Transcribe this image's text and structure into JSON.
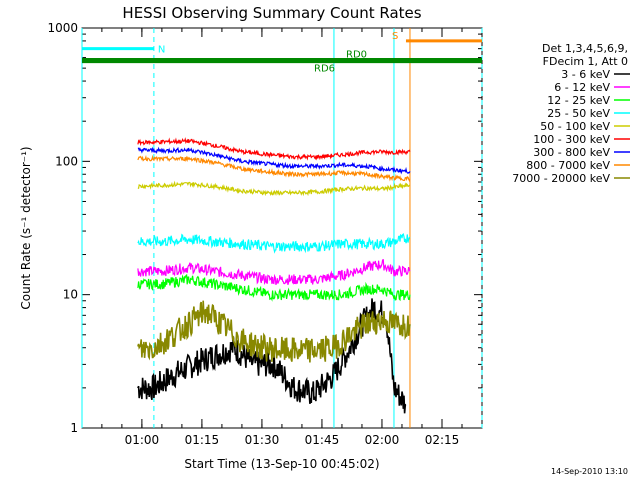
{
  "chart_data": {
    "type": "line",
    "title": "HESSI Observing Summary Count Rates",
    "xlabel": "Start Time (13-Sep-10 00:45:02)",
    "ylabel": "Count Rate (s⁻¹ detector⁻¹)",
    "yscale": "log",
    "ylim": [
      1,
      1000
    ],
    "xlim": [
      "00:45:02",
      "02:25:00"
    ],
    "x_ticks": [
      "01:00",
      "01:15",
      "01:30",
      "01:45",
      "02:00",
      "02:15"
    ],
    "y_ticks": [
      "1",
      "10",
      "100",
      "1000"
    ],
    "legend_title": [
      "Det 1,3,4,5,6,9,",
      "FDecim 1, Att 0"
    ],
    "legend_position": "right",
    "footer": "14-Sep-2010 13:10",
    "series": [
      {
        "name": "3 - 6 keV",
        "color": "#000000",
        "points": [
          [
            "00:59:00",
            2.0
          ],
          [
            "01:03:00",
            2.0
          ],
          [
            "01:08:00",
            2.5
          ],
          [
            "01:13:00",
            3.0
          ],
          [
            "01:18:00",
            3.5
          ],
          [
            "01:23:00",
            4.0
          ],
          [
            "01:28:00",
            3.0
          ],
          [
            "01:33:00",
            3.0
          ],
          [
            "01:38:00",
            2.0
          ],
          [
            "01:43:00",
            1.8
          ],
          [
            "01:48:00",
            2.5
          ],
          [
            "01:52:00",
            4.0
          ],
          [
            "01:55:00",
            6.0
          ],
          [
            "01:58:00",
            8.0
          ],
          [
            "02:01:00",
            7.0
          ],
          [
            "02:03:00",
            2.0
          ],
          [
            "02:06:00",
            1.5
          ]
        ]
      },
      {
        "name": "6 - 12 keV",
        "color": "#ff00ff",
        "points": [
          [
            "00:59:00",
            15
          ],
          [
            "01:05:00",
            15
          ],
          [
            "01:12:00",
            16
          ],
          [
            "01:18:00",
            15
          ],
          [
            "01:25:00",
            14
          ],
          [
            "01:32:00",
            13
          ],
          [
            "01:38:00",
            13
          ],
          [
            "01:44:00",
            13
          ],
          [
            "01:50:00",
            14
          ],
          [
            "01:56:00",
            16
          ],
          [
            "02:00:00",
            17
          ],
          [
            "02:03:00",
            15
          ],
          [
            "02:07:00",
            15
          ]
        ]
      },
      {
        "name": "12 - 25 keV",
        "color": "#00ff00",
        "points": [
          [
            "00:59:00",
            12
          ],
          [
            "01:05:00",
            12
          ],
          [
            "01:12:00",
            13
          ],
          [
            "01:18:00",
            12
          ],
          [
            "01:25:00",
            11
          ],
          [
            "01:32:00",
            10
          ],
          [
            "01:38:00",
            10
          ],
          [
            "01:44:00",
            10
          ],
          [
            "01:50:00",
            10
          ],
          [
            "01:56:00",
            11
          ],
          [
            "02:00:00",
            11
          ],
          [
            "02:03:00",
            10
          ],
          [
            "02:07:00",
            10
          ]
        ]
      },
      {
        "name": "25 - 50 keV",
        "color": "#00ffff",
        "points": [
          [
            "00:59:00",
            25
          ],
          [
            "01:05:00",
            25
          ],
          [
            "01:12:00",
            26
          ],
          [
            "01:18:00",
            25
          ],
          [
            "01:25:00",
            24
          ],
          [
            "01:32:00",
            23
          ],
          [
            "01:38:00",
            23
          ],
          [
            "01:44:00",
            23
          ],
          [
            "01:50:00",
            24
          ],
          [
            "01:56:00",
            24
          ],
          [
            "02:00:00",
            24
          ],
          [
            "02:03:00",
            25
          ],
          [
            "02:07:00",
            27
          ]
        ]
      },
      {
        "name": "50 - 100 keV",
        "color": "#cccc00",
        "points": [
          [
            "00:59:00",
            65
          ],
          [
            "01:05:00",
            66
          ],
          [
            "01:12:00",
            68
          ],
          [
            "01:18:00",
            65
          ],
          [
            "01:25:00",
            60
          ],
          [
            "01:32:00",
            58
          ],
          [
            "01:38:00",
            58
          ],
          [
            "01:44:00",
            59
          ],
          [
            "01:50:00",
            62
          ],
          [
            "01:56:00",
            63
          ],
          [
            "02:00:00",
            62
          ],
          [
            "02:03:00",
            64
          ],
          [
            "02:07:00",
            66
          ]
        ]
      },
      {
        "name": "100 - 300 keV",
        "color": "#ff0000",
        "points": [
          [
            "00:59:00",
            138
          ],
          [
            "01:05:00",
            140
          ],
          [
            "01:12:00",
            142
          ],
          [
            "01:18:00",
            132
          ],
          [
            "01:25:00",
            118
          ],
          [
            "01:32:00",
            112
          ],
          [
            "01:38:00",
            108
          ],
          [
            "01:44:00",
            108
          ],
          [
            "01:50:00",
            112
          ],
          [
            "01:56:00",
            117
          ],
          [
            "02:00:00",
            118
          ],
          [
            "02:03:00",
            117
          ],
          [
            "02:07:00",
            118
          ]
        ]
      },
      {
        "name": "300 - 800 keV",
        "color": "#0000ff",
        "points": [
          [
            "00:59:00",
            122
          ],
          [
            "01:05:00",
            120
          ],
          [
            "01:12:00",
            122
          ],
          [
            "01:18:00",
            112
          ],
          [
            "01:25:00",
            100
          ],
          [
            "01:32:00",
            95
          ],
          [
            "01:38:00",
            92
          ],
          [
            "01:44:00",
            92
          ],
          [
            "01:50:00",
            94
          ],
          [
            "01:56:00",
            92
          ],
          [
            "02:00:00",
            88
          ],
          [
            "02:03:00",
            86
          ],
          [
            "02:07:00",
            84
          ]
        ]
      },
      {
        "name": "800 - 7000 keV",
        "color": "#ff8800",
        "points": [
          [
            "00:59:00",
            105
          ],
          [
            "01:05:00",
            104
          ],
          [
            "01:12:00",
            105
          ],
          [
            "01:18:00",
            98
          ],
          [
            "01:25:00",
            88
          ],
          [
            "01:32:00",
            83
          ],
          [
            "01:38:00",
            80
          ],
          [
            "01:44:00",
            80
          ],
          [
            "01:50:00",
            82
          ],
          [
            "01:56:00",
            80
          ],
          [
            "02:00:00",
            77
          ],
          [
            "02:03:00",
            75
          ],
          [
            "02:07:00",
            74
          ]
        ]
      },
      {
        "name": "7000 - 20000 keV",
        "color": "#888800",
        "points": [
          [
            "00:59:00",
            3.8
          ],
          [
            "01:03:00",
            4.0
          ],
          [
            "01:08:00",
            5.0
          ],
          [
            "01:13:00",
            6.5
          ],
          [
            "01:16:00",
            7.5
          ],
          [
            "01:20:00",
            6.0
          ],
          [
            "01:25:00",
            4.5
          ],
          [
            "01:30:00",
            4.0
          ],
          [
            "01:36:00",
            3.8
          ],
          [
            "01:42:00",
            3.8
          ],
          [
            "01:48:00",
            4.0
          ],
          [
            "01:52:00",
            5.0
          ],
          [
            "01:56:00",
            6.0
          ],
          [
            "02:00:00",
            6.5
          ],
          [
            "02:03:00",
            6.0
          ],
          [
            "02:07:00",
            6.0
          ]
        ]
      }
    ],
    "flags": [
      {
        "label": "N",
        "color": "#00ffff",
        "start": "00:45:02",
        "end": "01:03:00",
        "value": 700
      },
      {
        "label": "RD0",
        "color": "#008800",
        "start": "00:45:02",
        "end": "02:25:00",
        "value": 580
      },
      {
        "label": "RD6",
        "color": "#008800",
        "start": "00:45:02",
        "end": "02:25:00",
        "value": 560
      },
      {
        "label": "S",
        "color": "#ff8800",
        "start": "02:06:00",
        "end": "02:25:00",
        "value": 800
      }
    ],
    "vlines": [
      {
        "time": "00:45:02",
        "color": "#00ffff",
        "style": "solid"
      },
      {
        "time": "01:03:00",
        "color": "#00ffff",
        "style": "dashed"
      },
      {
        "time": "01:48:00",
        "color": "#00ffff",
        "style": "solid"
      },
      {
        "time": "02:03:00",
        "color": "#00ffff",
        "style": "solid"
      },
      {
        "time": "02:07:00",
        "color": "#ff8800",
        "style": "solid"
      },
      {
        "time": "02:25:00",
        "color": "#00ffff",
        "style": "dashed"
      }
    ]
  }
}
